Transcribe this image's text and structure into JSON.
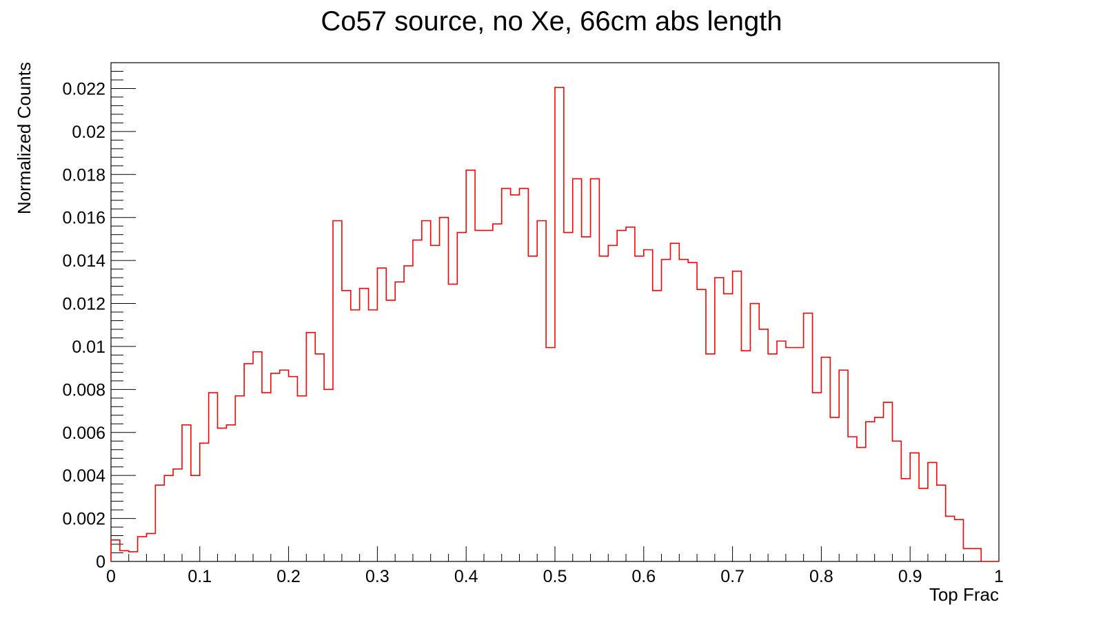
{
  "chart_data": {
    "type": "bar",
    "title": "Co57 source, no Xe, 66cm abs length",
    "xlabel": "Top Frac",
    "ylabel": "Normalized Counts",
    "xlim": [
      0,
      1
    ],
    "ylim": [
      0,
      0.0232
    ],
    "x_ticks": [
      0,
      0.1,
      0.2,
      0.3,
      0.4,
      0.5,
      0.6,
      0.7,
      0.8,
      0.9,
      1
    ],
    "x_tick_labels": [
      "0",
      "0.1",
      "0.2",
      "0.3",
      "0.4",
      "0.5",
      "0.6",
      "0.7",
      "0.8",
      "0.9",
      "1"
    ],
    "y_ticks": [
      0,
      0.002,
      0.004,
      0.006,
      0.008,
      0.01,
      0.012,
      0.014,
      0.016,
      0.018,
      0.02,
      0.022
    ],
    "y_tick_labels": [
      "0",
      "0.002",
      "0.004",
      "0.006",
      "0.008",
      "0.01",
      "0.012",
      "0.014",
      "0.016",
      "0.018",
      "0.02",
      "0.022"
    ],
    "bin_width": 0.01,
    "grid": false,
    "legend": "none",
    "line_color": "#ff0000",
    "values": [
      0.001,
      0.0005,
      0.00045,
      0.00115,
      0.0013,
      0.00355,
      0.004,
      0.0043,
      0.00635,
      0.004,
      0.0055,
      0.00785,
      0.0062,
      0.00635,
      0.0077,
      0.0092,
      0.00975,
      0.00785,
      0.00875,
      0.0089,
      0.0086,
      0.0077,
      0.01065,
      0.00965,
      0.008,
      0.01585,
      0.0126,
      0.0117,
      0.0127,
      0.0117,
      0.01365,
      0.01215,
      0.013,
      0.01375,
      0.01495,
      0.01585,
      0.0147,
      0.016,
      0.0129,
      0.0153,
      0.0182,
      0.0154,
      0.0154,
      0.0157,
      0.01735,
      0.01705,
      0.01735,
      0.0142,
      0.01585,
      0.00995,
      0.02205,
      0.0153,
      0.0178,
      0.0151,
      0.0178,
      0.0142,
      0.0147,
      0.0154,
      0.01555,
      0.0142,
      0.0145,
      0.0126,
      0.01405,
      0.0148,
      0.01405,
      0.0139,
      0.01265,
      0.00965,
      0.0132,
      0.01245,
      0.0135,
      0.0098,
      0.012,
      0.0108,
      0.00965,
      0.01025,
      0.00995,
      0.00995,
      0.01155,
      0.00785,
      0.0095,
      0.0067,
      0.0089,
      0.0058,
      0.0053,
      0.0065,
      0.0067,
      0.0074,
      0.0056,
      0.00385,
      0.00505,
      0.0034,
      0.0046,
      0.00355,
      0.0021,
      0.00195,
      0.0006,
      0.0006,
      0.0,
      0.0
    ]
  }
}
